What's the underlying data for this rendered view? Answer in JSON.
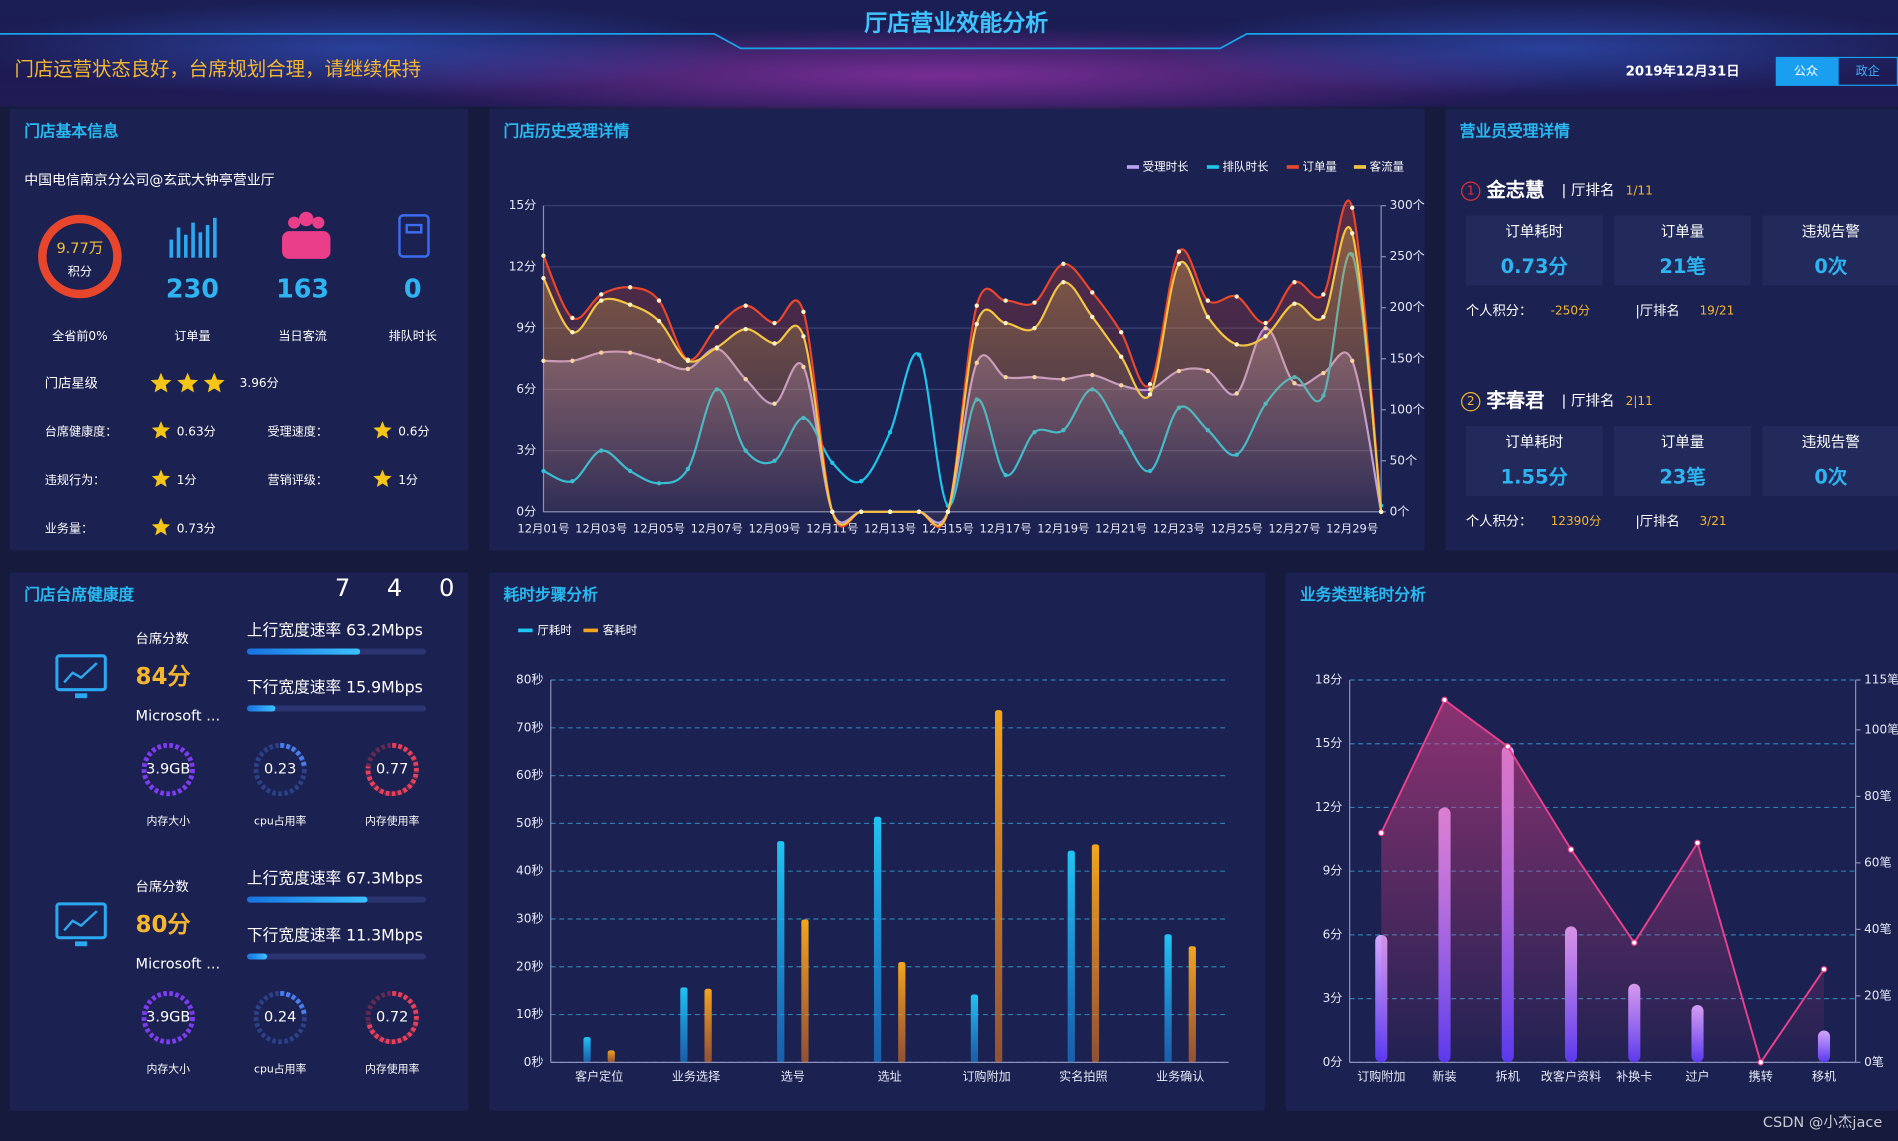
{
  "header": {
    "title": "厅店营业效能分析",
    "banner": "门店运营状态良好，台席规划合理，请继续保持",
    "date": "2019年12月31日",
    "tabs": [
      "公众",
      "政企"
    ]
  },
  "store_info": {
    "title": "门店基本信息",
    "name": "中国电信南京分公司@玄武大钟亭营业厅",
    "score": "9.77万",
    "score_label": "积分",
    "rank": "全省前0%",
    "stats": [
      {
        "value": 230,
        "label": "订单量"
      },
      {
        "value": 163,
        "label": "当日客流"
      },
      {
        "value": 0,
        "label": "排队时长"
      }
    ],
    "star_label": "门店星级",
    "stars": 3,
    "star_score": "3.96分",
    "metrics": [
      {
        "label": "台席健康度：",
        "value": "0.63分"
      },
      {
        "label": "受理速度：",
        "value": "0.6分"
      },
      {
        "label": "违规行为：",
        "value": "1分"
      },
      {
        "label": "营销评级：",
        "value": "1分"
      },
      {
        "label": "业务量：",
        "value": "0.73分"
      }
    ]
  },
  "seat_health": {
    "title": "门店台席健康度",
    "counts": [
      7,
      4,
      0
    ],
    "speed_scale": [
      0,
      100
    ],
    "seats": [
      {
        "score_label": "台席分数",
        "score": "84分",
        "device": "Microsoft ...",
        "speeds": [
          {
            "label": "上行宽度速率",
            "value": 63.2,
            "unit": "Mbps"
          },
          {
            "label": "下行宽度速率",
            "value": 15.9,
            "unit": "Mbps"
          }
        ],
        "gauges": [
          {
            "value": "3.9GB",
            "label": "内存大小"
          },
          {
            "value": 0.23,
            "label": "cpu占用率"
          },
          {
            "value": 0.77,
            "label": "内存使用率"
          }
        ]
      },
      {
        "score_label": "台席分数",
        "score": "80分",
        "device": "Microsoft ...",
        "speeds": [
          {
            "label": "上行宽度速率",
            "value": 67.3,
            "unit": "Mbps"
          },
          {
            "label": "下行宽度速率",
            "value": 11.3,
            "unit": "Mbps"
          }
        ],
        "gauges": [
          {
            "value": "3.9GB",
            "label": "内存大小"
          },
          {
            "value": 0.24,
            "label": "cpu占用率"
          },
          {
            "value": 0.72,
            "label": "内存使用率"
          }
        ]
      }
    ]
  },
  "staff": {
    "title": "营业员受理详情",
    "members": [
      {
        "index": 1,
        "name": "金志慧",
        "rank_label": "| 厅排名",
        "rank": "1/11",
        "cards": [
          {
            "label": "订单耗时",
            "value": "0.73分"
          },
          {
            "label": "订单量",
            "value": "21笔"
          },
          {
            "label": "违规告警",
            "value": "0次"
          }
        ],
        "points_label": "个人积分：",
        "points": "-250分",
        "hall_rank_label": "|厅排名",
        "hall_rank": "19/21"
      },
      {
        "index": 2,
        "name": "李春君",
        "rank_label": "| 厅排名",
        "rank": "2|11",
        "cards": [
          {
            "label": "订单耗时",
            "value": "1.55分"
          },
          {
            "label": "订单量",
            "value": "23笔"
          },
          {
            "label": "违规告警",
            "value": "0次"
          }
        ],
        "points_label": "个人积分：",
        "points": "12390分",
        "hall_rank_label": "|厅排名",
        "hall_rank": "3/21"
      }
    ]
  },
  "chart_data": [
    {
      "type": "line",
      "title": "门店历史受理详情",
      "smooth": true,
      "grid": true,
      "legend": "top-right",
      "categories": [
        "12月01号",
        null,
        "12月03号",
        null,
        "12月05号",
        null,
        "12月07号",
        null,
        "12月09号",
        null,
        "12月11号",
        null,
        "12月13号",
        null,
        "12月15号",
        null,
        "12月17号",
        null,
        "12月19号",
        null,
        "12月21号",
        null,
        "12月23号",
        null,
        "12月25号",
        null,
        "12月27号",
        null,
        "12月29号",
        null
      ],
      "series": [
        {
          "name": "受理时长",
          "color": "#b9a3f5",
          "values": [
            7.4,
            7.4,
            7.8,
            7.8,
            7.4,
            7.0,
            8.0,
            6.5,
            5.3,
            7.1,
            0,
            0,
            0,
            0,
            0,
            7.3,
            6.6,
            6.6,
            6.5,
            6.7,
            6.2,
            6.0,
            6.9,
            6.9,
            5.8,
            9.0,
            6.3,
            6.8,
            7.4,
            0
          ]
        },
        {
          "name": "排队时长",
          "color": "#20c5ea",
          "values": [
            2.0,
            1.5,
            3.0,
            2.0,
            1.4,
            2.1,
            6.0,
            3.0,
            2.5,
            4.6,
            2.4,
            1.5,
            3.9,
            7.7,
            0.3,
            5.5,
            1.8,
            3.9,
            4.0,
            6.0,
            3.9,
            2.0,
            5.1,
            4.0,
            2.8,
            5.3,
            6.6,
            5.7,
            12.6,
            0.3
          ]
        },
        {
          "name": "订单量",
          "color": "#e8472b",
          "axis": "y2",
          "values": [
            251,
            190,
            213,
            220,
            207,
            149,
            181,
            202,
            185,
            196,
            0,
            0,
            0,
            0,
            0,
            202,
            207,
            205,
            243,
            215,
            176,
            125,
            255,
            207,
            211,
            185,
            225,
            213,
            298,
            0
          ]
        },
        {
          "name": "客流量",
          "color": "#f4c542",
          "axis": "y2",
          "values": [
            229,
            176,
            207,
            203,
            187,
            148,
            161,
            179,
            165,
            172,
            0,
            0,
            0,
            0,
            0,
            184,
            185,
            180,
            225,
            191,
            152,
            115,
            243,
            191,
            164,
            172,
            204,
            191,
            273,
            0
          ]
        }
      ],
      "ylim": [
        0,
        15
      ],
      "yticks": [
        {
          "value": 0,
          "label": "0分"
        },
        {
          "value": 3,
          "label": "3分"
        },
        {
          "value": 6,
          "label": "6分"
        },
        {
          "value": 9,
          "label": "9分"
        },
        {
          "value": 12,
          "label": "12分"
        },
        {
          "value": 15,
          "label": "15分"
        }
      ],
      "y2lim": [
        0,
        300
      ],
      "y2ticks": [
        {
          "value": 0,
          "label": "0个"
        },
        {
          "value": 50,
          "label": "50个"
        },
        {
          "value": 100,
          "label": "100个"
        },
        {
          "value": 150,
          "label": "150个"
        },
        {
          "value": 200,
          "label": "200个"
        },
        {
          "value": 250,
          "label": "250个"
        },
        {
          "value": 300,
          "label": "300个"
        }
      ]
    },
    {
      "type": "bar",
      "title": "耗时步骤分析",
      "grid": true,
      "legend": "top-left",
      "categories": [
        "客户定位",
        "业务选择",
        "选号",
        "选址",
        "订购附加",
        "实名拍照",
        "业务确认"
      ],
      "series": [
        {
          "name": "厅耗时",
          "color": "#22c4f2",
          "values": [
            5.3,
            15.7,
            46.3,
            51.4,
            14.2,
            44.3,
            26.8
          ]
        },
        {
          "name": "客耗时",
          "color": "#f2a61f",
          "values": [
            2.5,
            15.4,
            29.9,
            21.0,
            73.7,
            45.6,
            24.3
          ]
        }
      ],
      "ylim": [
        0,
        80
      ],
      "yticks": [
        {
          "value": 0,
          "label": "0秒"
        },
        {
          "value": 10,
          "label": "10秒"
        },
        {
          "value": 20,
          "label": "20秒"
        },
        {
          "value": 30,
          "label": "30秒"
        },
        {
          "value": 40,
          "label": "40秒"
        },
        {
          "value": 50,
          "label": "50秒"
        },
        {
          "value": 60,
          "label": "60秒"
        },
        {
          "value": 70,
          "label": "70秒"
        },
        {
          "value": 80,
          "label": "80秒"
        }
      ]
    },
    {
      "type": "bar-line",
      "title": "业务类型耗时分析",
      "grid": true,
      "categories": [
        "订购附加",
        "新装",
        "拆机",
        "改客户资料",
        "补换卡",
        "过户",
        "携转",
        "移机"
      ],
      "series": [
        {
          "type": "bar",
          "color": "#8b6cf5",
          "values": [
            6.0,
            12.0,
            14.9,
            6.4,
            3.7,
            2.7,
            0,
            1.5
          ]
        },
        {
          "type": "line",
          "color": "#e8408c",
          "axis": "y2",
          "values": [
            69,
            109,
            95,
            64,
            36,
            66,
            0,
            28
          ]
        }
      ],
      "ylim": [
        0,
        18
      ],
      "yticks": [
        {
          "value": 0,
          "label": "0分"
        },
        {
          "value": 3,
          "label": "3分"
        },
        {
          "value": 6,
          "label": "6分"
        },
        {
          "value": 9,
          "label": "9分"
        },
        {
          "value": 12,
          "label": "12分"
        },
        {
          "value": 15,
          "label": "15分"
        },
        {
          "value": 18,
          "label": "18分"
        }
      ],
      "y2lim": [
        0,
        115
      ],
      "y2ticks": [
        {
          "value": 0,
          "label": "0笔"
        },
        {
          "value": 20,
          "label": "20笔"
        },
        {
          "value": 40,
          "label": "40笔"
        },
        {
          "value": 60,
          "label": "60笔"
        },
        {
          "value": 80,
          "label": "80笔"
        },
        {
          "value": 100,
          "label": "100笔"
        },
        {
          "value": 115,
          "label": "115笔"
        }
      ]
    }
  ],
  "watermark": "CSDN @小杰jace"
}
